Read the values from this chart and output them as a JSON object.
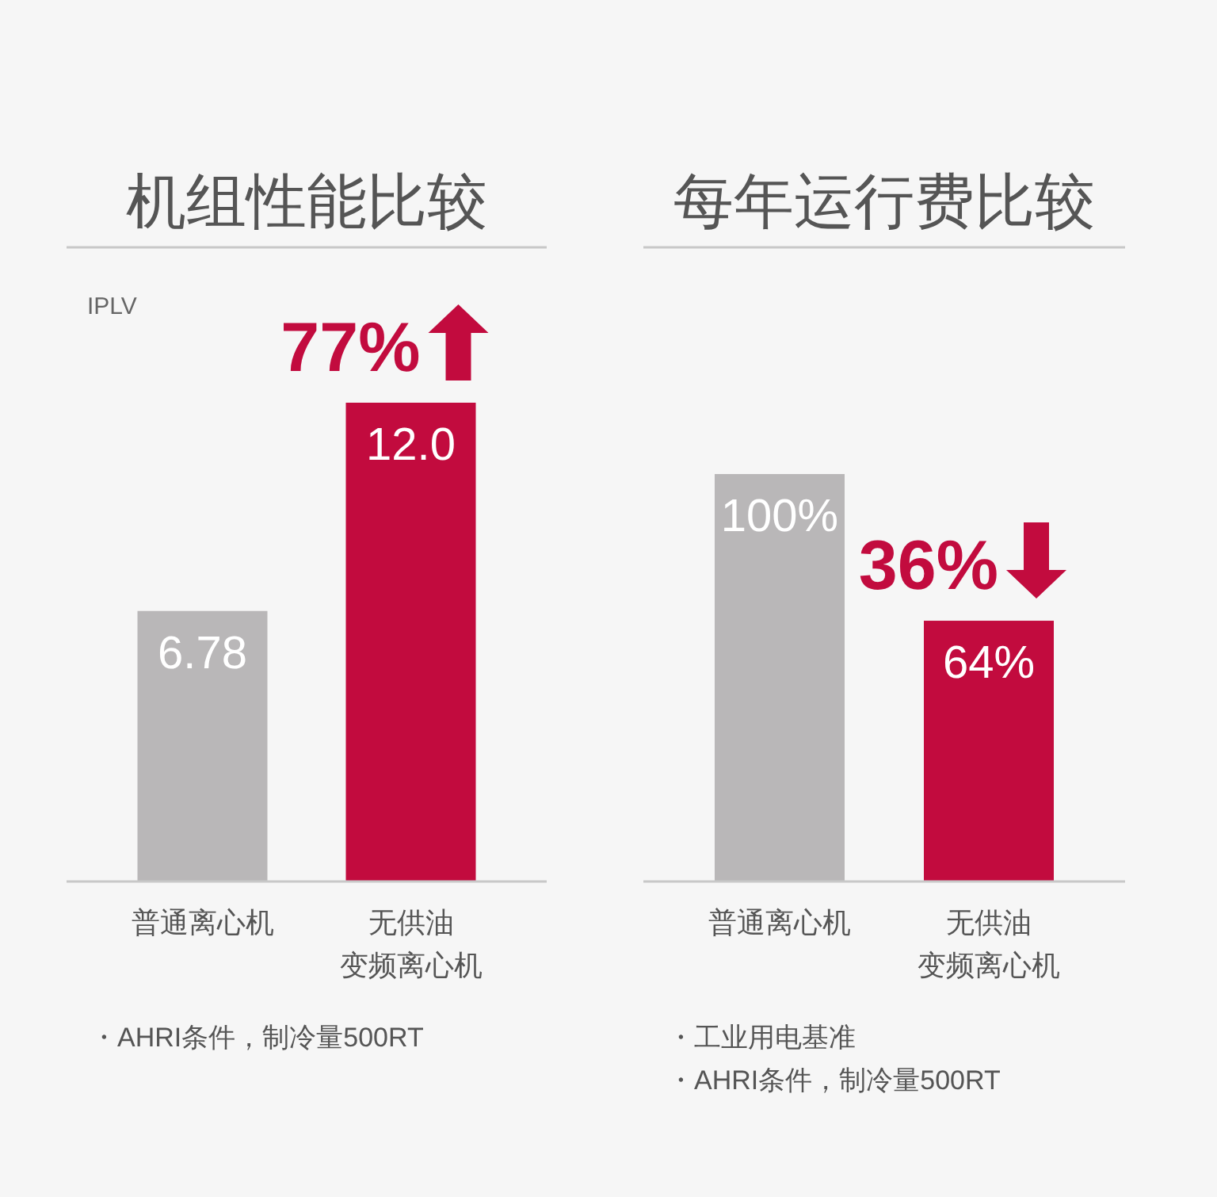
{
  "chart_data": [
    {
      "type": "bar",
      "title": "机组性能比较",
      "ylabel": "IPLV",
      "categories": [
        "普通离心机",
        "无供油变频离心机"
      ],
      "values": [
        6.78,
        12.0
      ],
      "value_labels": [
        "6.78",
        "12.0"
      ],
      "colors": [
        "#b9b7b8",
        "#c20b3e"
      ],
      "annotations": [
        {
          "text": "77%",
          "x": "无供油变频离心机",
          "y": 12.0
        },
        "・AHRI条件，制冷量500RT"
      ]
    },
    {
      "type": "bar",
      "title": "每年运行费比较",
      "categories": [
        "普通离心机",
        "无供油变频离心机"
      ],
      "values": [
        100,
        64
      ],
      "value_labels": [
        "100%",
        "64%"
      ],
      "colors": [
        "#b9b7b8",
        "#c20b3e"
      ],
      "annotations": [
        {
          "text": "36%",
          "x": "无供油变频离心机",
          "y": 64
        },
        "・工业用电基准",
        "・AHRI条件，制冷量500RT"
      ]
    }
  ]
}
